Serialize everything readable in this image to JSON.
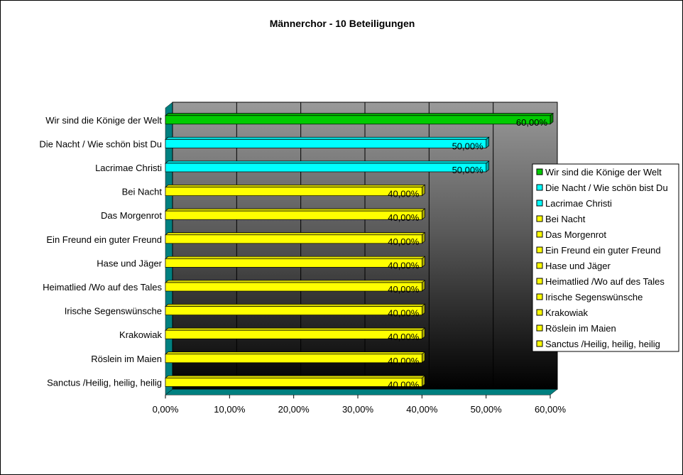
{
  "chart_data": {
    "type": "bar",
    "orientation": "horizontal",
    "three_d": true,
    "title": "Männerchor - 10 Beteiligungen",
    "xlabel": "",
    "ylabel": "",
    "xlim": [
      0,
      0.6
    ],
    "x_ticks": [
      0,
      0.1,
      0.2,
      0.3,
      0.4,
      0.5,
      0.6
    ],
    "x_tick_labels": [
      "0,00%",
      "10,00%",
      "20,00%",
      "30,00%",
      "40,00%",
      "50,00%",
      "60,00%"
    ],
    "grid": true,
    "legend_position": "right",
    "categories": [
      "Wir sind die Könige der Welt",
      "Die Nacht / Wie schön bist Du",
      "Lacrimae Christi",
      "Bei Nacht",
      "Das Morgenrot",
      "Ein Freund ein guter Freund",
      "Hase und Jäger",
      "Heimatlied /Wo auf des Tales",
      "Irische Segenswünsche",
      "Krakowiak",
      "Röslein im Maien",
      "Sanctus /Heilig, heilig, heilig"
    ],
    "values": [
      0.6,
      0.5,
      0.5,
      0.4,
      0.4,
      0.4,
      0.4,
      0.4,
      0.4,
      0.4,
      0.4,
      0.4
    ],
    "value_labels": [
      "60,00%",
      "50,00%",
      "50,00%",
      "40,00%",
      "40,00%",
      "40,00%",
      "40,00%",
      "40,00%",
      "40,00%",
      "40,00%",
      "40,00%",
      "40,00%"
    ],
    "colors": [
      "#00cc00",
      "#00ffff",
      "#00ffff",
      "#ffff00",
      "#ffff00",
      "#ffff00",
      "#ffff00",
      "#ffff00",
      "#ffff00",
      "#ffff00",
      "#ffff00",
      "#ffff00"
    ],
    "legend": [
      "Wir sind die Könige der Welt",
      "Die Nacht / Wie schön bist Du",
      "Lacrimae Christi",
      "Bei Nacht",
      "Das Morgenrot",
      "Ein Freund ein guter Freund",
      "Hase und Jäger",
      "Heimatlied /Wo auf des Tales",
      "Irische Segenswünsche",
      "Krakowiak",
      "Röslein im Maien",
      "Sanctus /Heilig, heilig, heilig"
    ],
    "plot_background": "gradient gray to black",
    "wall_color": "#008080"
  }
}
